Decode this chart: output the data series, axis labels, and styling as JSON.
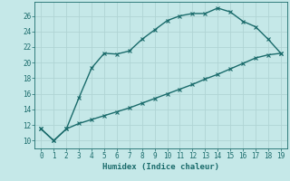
{
  "xlabel": "Humidex (Indice chaleur)",
  "xlim": [
    -0.5,
    19.5
  ],
  "ylim": [
    9.0,
    27.8
  ],
  "yticks": [
    10,
    12,
    14,
    16,
    18,
    20,
    22,
    24,
    26
  ],
  "xticks": [
    0,
    1,
    2,
    3,
    4,
    5,
    6,
    7,
    8,
    9,
    10,
    11,
    12,
    13,
    14,
    15,
    16,
    17,
    18,
    19
  ],
  "bg_color": "#c5e8e8",
  "grid_color": "#b0d4d4",
  "line_color": "#1a6b6b",
  "curve1_x": [
    0,
    1,
    2,
    3,
    4,
    5,
    6,
    7,
    8,
    9,
    10,
    11,
    12,
    13,
    14,
    15,
    16,
    17,
    18,
    19
  ],
  "curve1_y": [
    11.5,
    10.0,
    11.5,
    15.5,
    19.3,
    21.2,
    21.1,
    21.5,
    23.0,
    24.2,
    25.4,
    26.0,
    26.3,
    26.3,
    27.0,
    26.5,
    25.3,
    24.6,
    23.0,
    21.2
  ],
  "curve2_x": [
    0,
    1,
    2,
    3,
    4,
    5,
    6,
    7,
    8,
    9,
    10,
    11,
    12,
    13,
    14,
    15,
    16,
    17,
    18,
    19
  ],
  "curve2_y": [
    11.5,
    10.0,
    11.5,
    12.2,
    12.7,
    13.2,
    13.7,
    14.2,
    14.8,
    15.4,
    16.0,
    16.6,
    17.2,
    17.9,
    18.5,
    19.2,
    19.9,
    20.6,
    21.0,
    21.2
  ],
  "marker_size": 2.5,
  "linewidth": 1.0,
  "tick_fontsize": 5.5,
  "xlabel_fontsize": 6.5
}
